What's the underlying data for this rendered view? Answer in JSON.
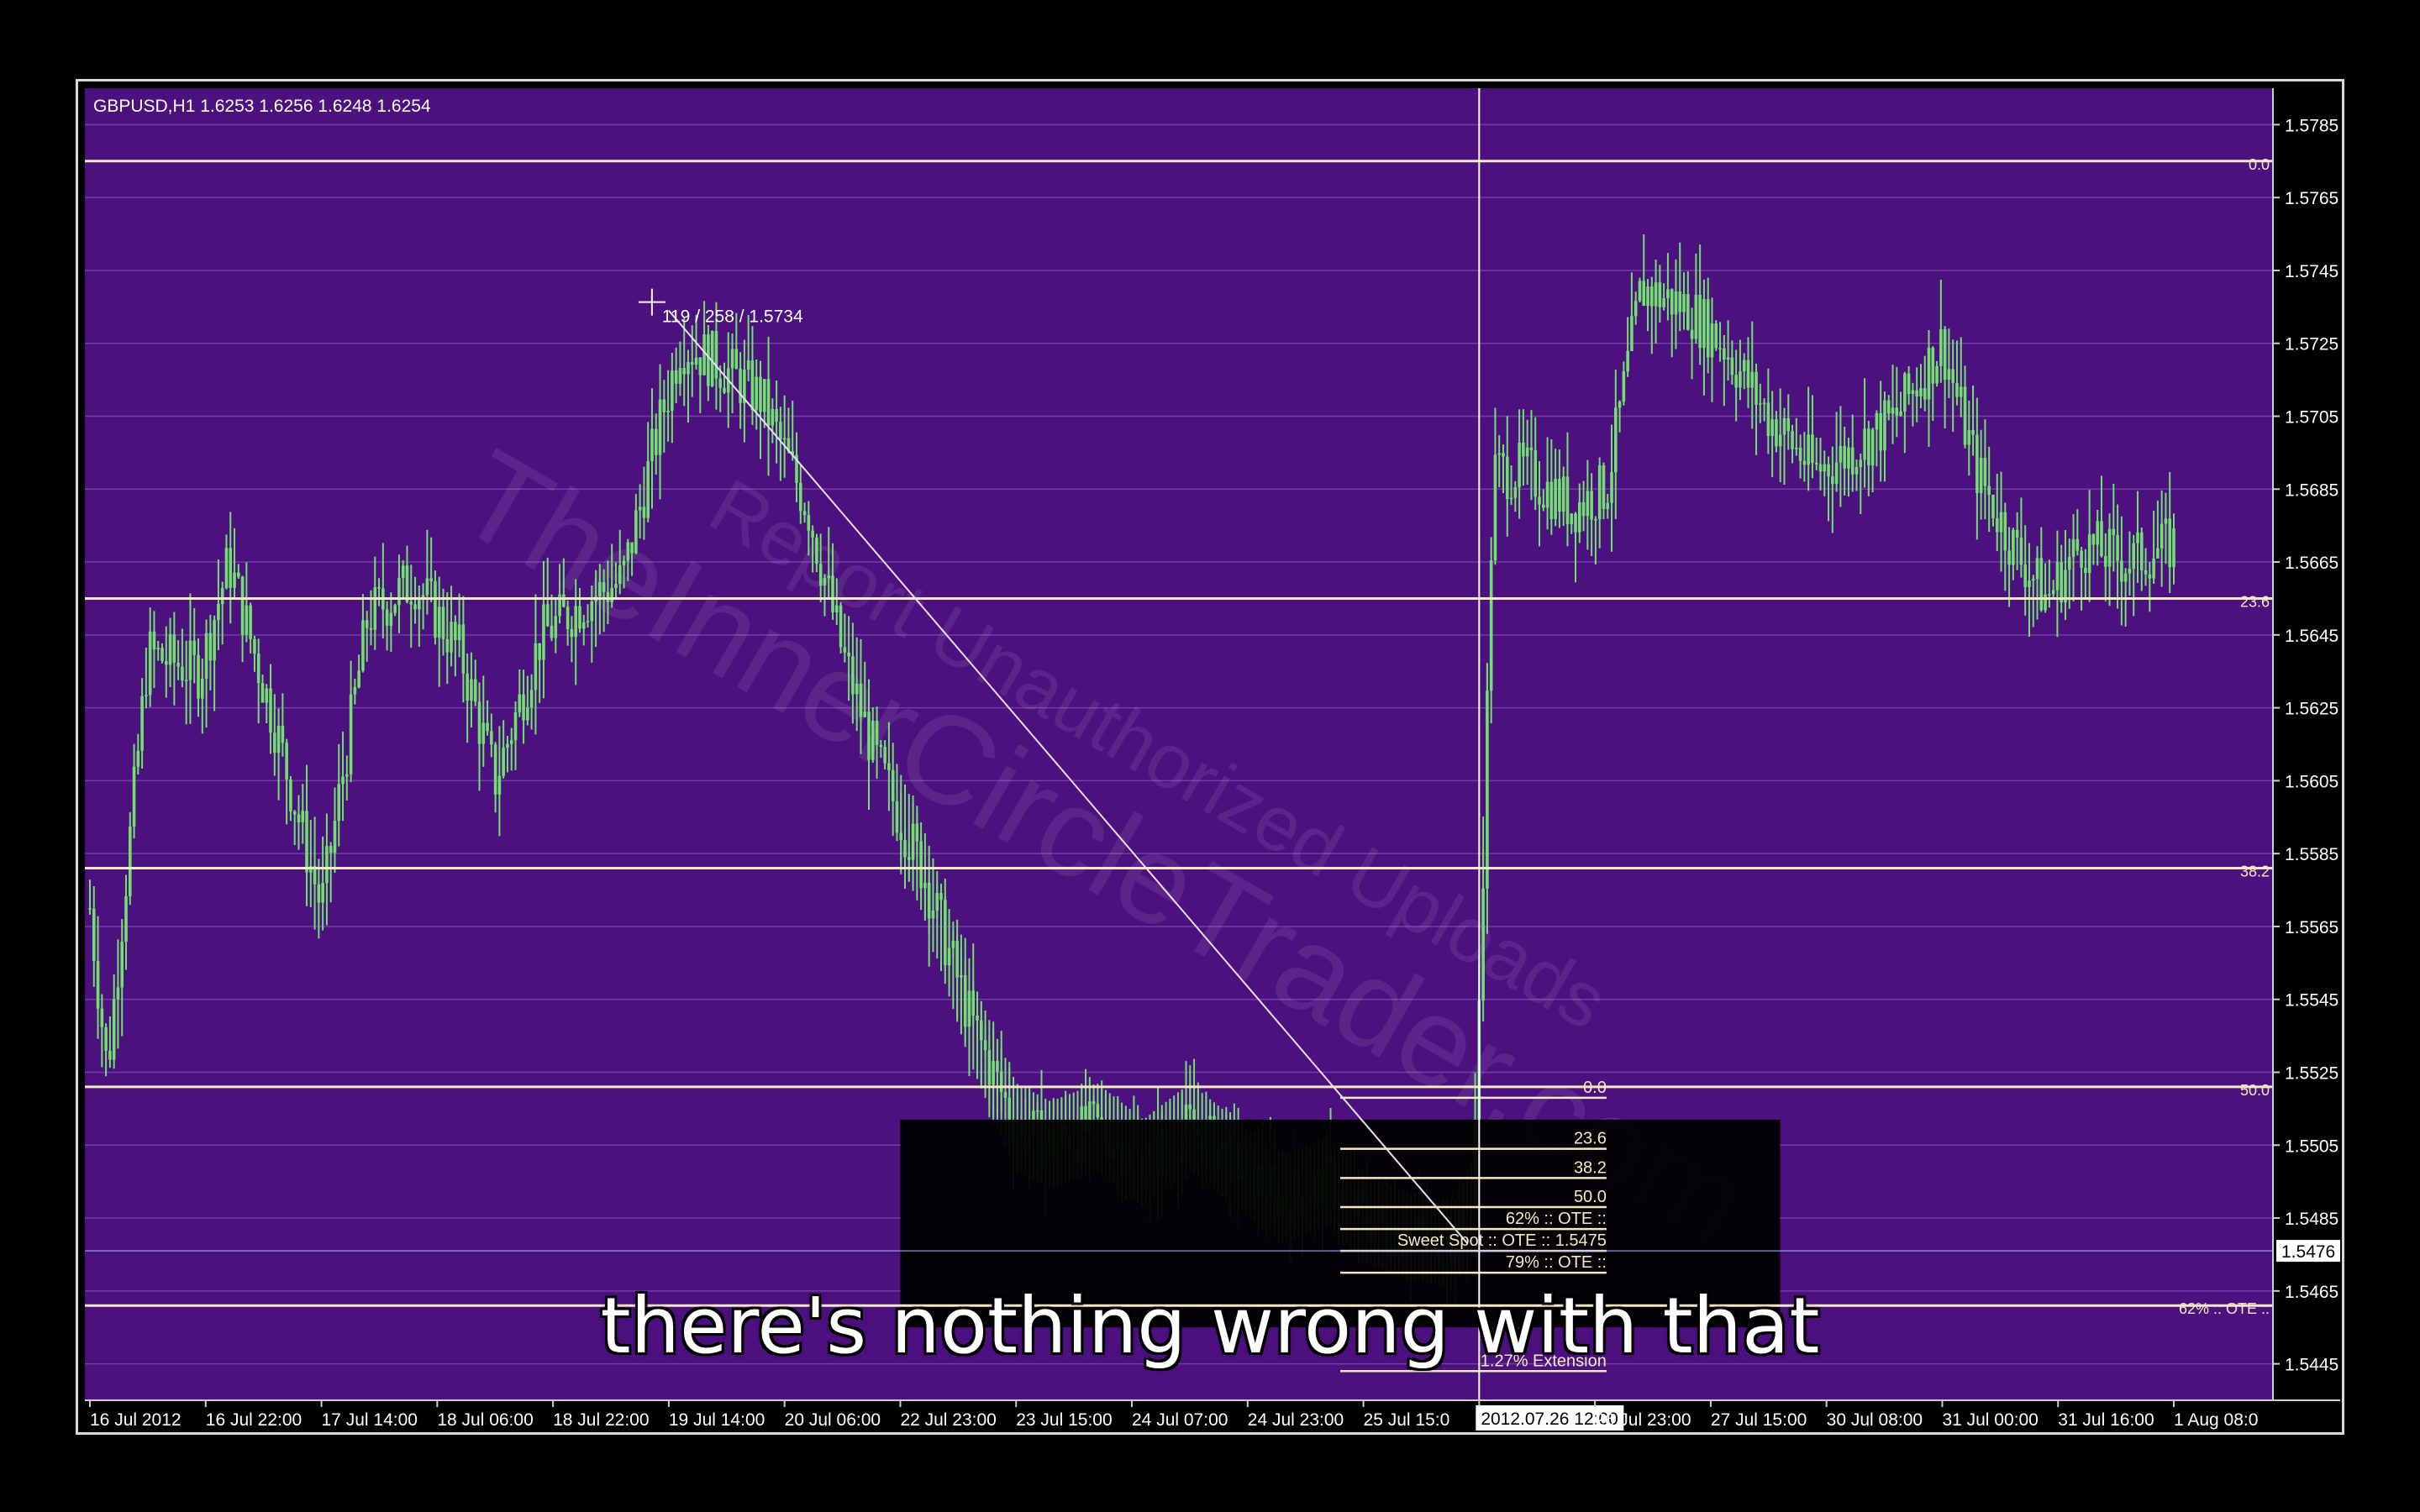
{
  "window": {
    "symbol_info": "GBPUSD,H1  1.6253 1.6256 1.6248 1.6254",
    "cursor_readout": "119 / 258 / 1.5734",
    "watermark": "Report Unauthorized Uploads\nTheInnerCircleTrader.com"
  },
  "caption": "there's nothing wrong with that",
  "colors": {
    "background": "#4d117f",
    "grid": "#7b47b2",
    "bull_candle": "#72e06e",
    "bear_candle": "#72e06e",
    "level_line": "#f3e9c4",
    "axis_text": "#ffffff",
    "fib_box": "#000000"
  },
  "chart_data": {
    "type": "candlestick",
    "symbol": "GBPUSD",
    "timeframe": "H1",
    "ylim": [
      1.5435,
      1.5795
    ],
    "y_ticks": [
      "1.5785",
      "1.5765",
      "1.5745",
      "1.5725",
      "1.5705",
      "1.5685",
      "1.5665",
      "1.5645",
      "1.5625",
      "1.5605",
      "1.5585",
      "1.5565",
      "1.5545",
      "1.5525",
      "1.5505",
      "1.5485",
      "1.5465",
      "1.5445"
    ],
    "current_price_label": "1.5476",
    "current_price": 1.5476,
    "x_ticks": [
      "16 Jul 2012",
      "16 Jul 22:00",
      "17 Jul 14:00",
      "18 Jul 06:00",
      "18 Jul 22:00",
      "19 Jul 14:00",
      "20 Jul 06:00",
      "22 Jul 23:00",
      "23 Jul 15:00",
      "24 Jul 07:00",
      "24 Jul 23:00",
      "25 Jul 15:0",
      "2012.07.26 12:00",
      "26 Jul 23:00",
      "27 Jul 15:00",
      "30 Jul 08:00",
      "31 Jul 00:00",
      "31 Jul 16:00",
      "1 Aug 08:0"
    ],
    "crosshair_time_label": "2012.07.26 12:00",
    "crosshair_bar_index": 12,
    "close_path": [
      [
        0,
        1.557
      ],
      [
        0.15,
        1.5525
      ],
      [
        0.5,
        1.564
      ],
      [
        0.95,
        1.5635
      ],
      [
        1.2,
        1.5665
      ],
      [
        1.6,
        1.562
      ],
      [
        2.0,
        1.557
      ],
      [
        2.4,
        1.565
      ],
      [
        2.8,
        1.566
      ],
      [
        3.2,
        1.564
      ],
      [
        3.5,
        1.5605
      ],
      [
        3.9,
        1.5645
      ],
      [
        4.3,
        1.5655
      ],
      [
        4.6,
        1.566
      ],
      [
        4.9,
        1.57
      ],
      [
        5.1,
        1.5725
      ],
      [
        5.4,
        1.572
      ],
      [
        5.8,
        1.571
      ],
      [
        6.2,
        1.568
      ],
      [
        6.5,
        1.564
      ],
      [
        6.8,
        1.561
      ],
      [
        7.2,
        1.558
      ],
      [
        7.6,
        1.554
      ],
      [
        8.0,
        1.551
      ],
      [
        8.3,
        1.5505
      ],
      [
        8.7,
        1.551
      ],
      [
        9.1,
        1.55
      ],
      [
        9.5,
        1.551
      ],
      [
        9.9,
        1.55
      ],
      [
        10.3,
        1.549
      ],
      [
        10.7,
        1.5495
      ],
      [
        11.0,
        1.5485
      ],
      [
        11.4,
        1.548
      ],
      [
        11.8,
        1.5478
      ],
      [
        11.95,
        1.549
      ],
      [
        12.05,
        1.56
      ],
      [
        12.12,
        1.569
      ],
      [
        12.4,
        1.569
      ],
      [
        12.8,
        1.568
      ],
      [
        13.1,
        1.5685
      ],
      [
        13.4,
        1.574
      ],
      [
        13.8,
        1.5735
      ],
      [
        14.1,
        1.5725
      ],
      [
        14.5,
        1.5705
      ],
      [
        14.9,
        1.569
      ],
      [
        15.2,
        1.5695
      ],
      [
        15.6,
        1.5705
      ],
      [
        16.0,
        1.5725
      ],
      [
        16.3,
        1.569
      ],
      [
        16.6,
        1.567
      ],
      [
        16.9,
        1.5655
      ],
      [
        17.2,
        1.567
      ],
      [
        17.6,
        1.5665
      ],
      [
        18.0,
        1.567
      ]
    ],
    "trendline": {
      "from": [
        5.0,
        1.5734
      ],
      "to": [
        11.9,
        1.5478
      ]
    },
    "fib_levels": [
      {
        "label": "0.0",
        "price": 1.5775
      },
      {
        "label": "23.6",
        "price": 1.5655
      },
      {
        "label": "38.2",
        "price": 1.5581
      },
      {
        "label": "50.0",
        "price": 1.5521
      },
      {
        "label": "62% :: OTE ::",
        "price": 1.5461
      }
    ],
    "inner_fib_levels": [
      {
        "label": "0.0",
        "price": 1.5518
      },
      {
        "label": "23.6",
        "price": 1.5504
      },
      {
        "label": "38.2",
        "price": 1.5496
      },
      {
        "label": "50.0",
        "price": 1.5488
      },
      {
        "label": "62% :: OTE ::",
        "price": 1.5482
      },
      {
        "label": "Sweet Spot :: OTE :: 1.5475",
        "price": 1.5476
      },
      {
        "label": "79% :: OTE ::",
        "price": 1.547
      },
      {
        "label": "1.27% Extension",
        "price": 1.5443
      }
    ],
    "grid": true
  }
}
